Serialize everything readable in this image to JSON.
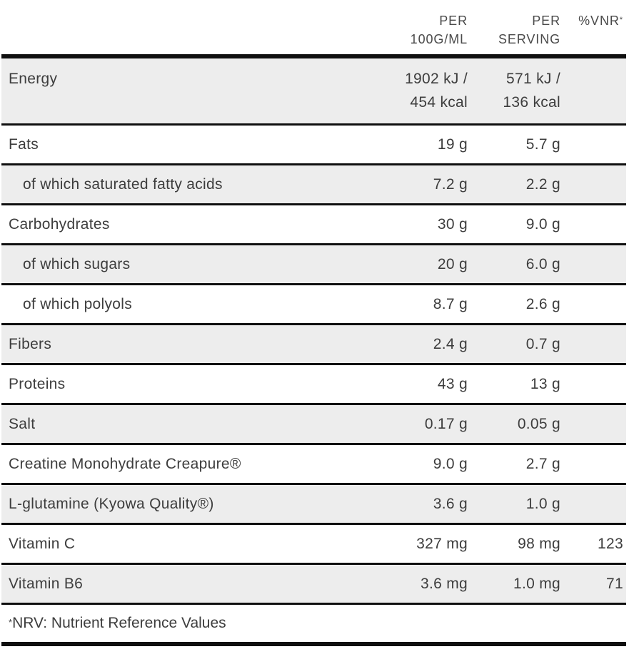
{
  "header": {
    "per_100": "PER\n100G/ML",
    "per_serving": "PER\nSERVING",
    "vnr_label": "%VNR",
    "vnr_asterisk": "*"
  },
  "rows": [
    {
      "label": "Energy",
      "per_100": "1902 kJ /\n454 kcal",
      "per_serving": "571 kJ /\n136 kcal",
      "vnr": "",
      "shaded": true,
      "indent": false,
      "tall": true
    },
    {
      "label": "Fats",
      "per_100": "19 g",
      "per_serving": "5.7 g",
      "vnr": "",
      "shaded": false,
      "indent": false,
      "tall": false
    },
    {
      "label": "of which saturated fatty acids",
      "per_100": "7.2 g",
      "per_serving": "2.2 g",
      "vnr": "",
      "shaded": true,
      "indent": true,
      "tall": false
    },
    {
      "label": "Carbohydrates",
      "per_100": "30 g",
      "per_serving": "9.0 g",
      "vnr": "",
      "shaded": false,
      "indent": false,
      "tall": false
    },
    {
      "label": "of which sugars",
      "per_100": "20 g",
      "per_serving": "6.0 g",
      "vnr": "",
      "shaded": true,
      "indent": true,
      "tall": false
    },
    {
      "label": "of which polyols",
      "per_100": "8.7 g",
      "per_serving": "2.6 g",
      "vnr": "",
      "shaded": false,
      "indent": true,
      "tall": false
    },
    {
      "label": "Fibers",
      "per_100": "2.4 g",
      "per_serving": "0.7 g",
      "vnr": "",
      "shaded": true,
      "indent": false,
      "tall": false
    },
    {
      "label": "Proteins",
      "per_100": "43 g",
      "per_serving": "13 g",
      "vnr": "",
      "shaded": false,
      "indent": false,
      "tall": false
    },
    {
      "label": "Salt",
      "per_100": "0.17 g",
      "per_serving": "0.05 g",
      "vnr": "",
      "shaded": true,
      "indent": false,
      "tall": false
    },
    {
      "label": "Creatine Monohydrate Creapure®",
      "per_100": "9.0 g",
      "per_serving": "2.7 g",
      "vnr": "",
      "shaded": false,
      "indent": false,
      "tall": false
    },
    {
      "label": "L-glutamine (Kyowa Quality®)",
      "per_100": "3.6 g",
      "per_serving": "1.0 g",
      "vnr": "",
      "shaded": true,
      "indent": false,
      "tall": false
    },
    {
      "label": "Vitamin C",
      "per_100": "327 mg",
      "per_serving": "98 mg",
      "vnr": "123",
      "shaded": false,
      "indent": false,
      "tall": false
    },
    {
      "label": "Vitamin B6",
      "per_100": "3.6 mg",
      "per_serving": "1.0 mg",
      "vnr": "71",
      "shaded": true,
      "indent": false,
      "tall": false
    }
  ],
  "footnote": {
    "marker": "*",
    "text": "NRV: Nutrient Reference Values"
  },
  "colors": {
    "shaded_row": "#ededed",
    "border": "#0f0f0f",
    "text": "#3d3d3d",
    "header_text": "#4a4a4a",
    "background": "#ffffff"
  }
}
